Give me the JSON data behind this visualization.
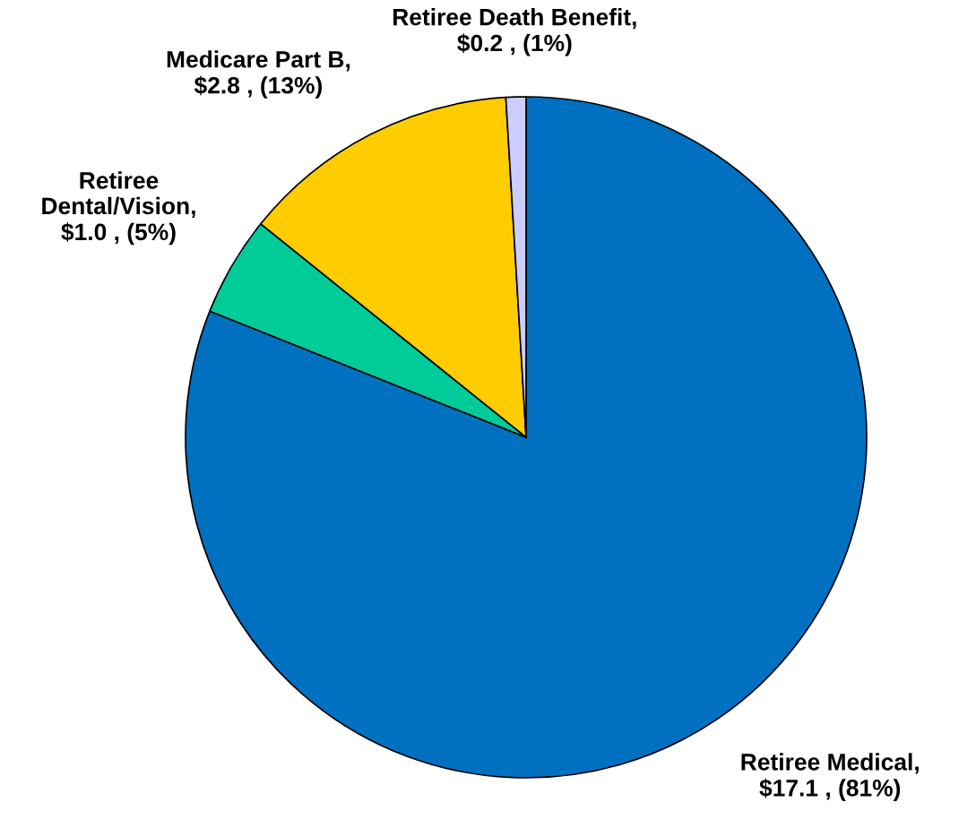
{
  "chart_data": {
    "type": "pie",
    "categories": [
      "Retiree Medical",
      "Retiree\nDental/Vision",
      "Medicare Part B",
      "Retiree Death Benefit"
    ],
    "values": [
      17.1,
      1.0,
      2.8,
      0.2
    ],
    "colors": [
      "#0070c0",
      "#00cc99",
      "#ffcc00",
      "#ccccff"
    ],
    "value_labels": [
      ",\n$17.1 , (81%)",
      ",\n$1.0 , (5%)",
      ",\n$2.8 , (13%)",
      ",\n$0.2 , (1%)"
    ]
  }
}
